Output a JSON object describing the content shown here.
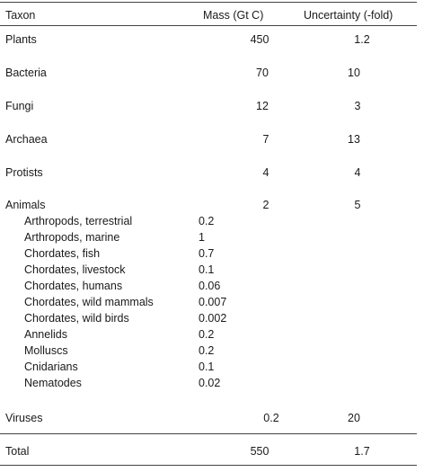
{
  "table": {
    "headers": {
      "taxon": "Taxon",
      "mass": "Mass (Gt C)",
      "uncertainty": "Uncertainty (-fold)"
    },
    "rows": [
      {
        "taxon": "Plants",
        "mass": "450",
        "uncertainty": "1.2"
      },
      {
        "taxon": "Bacteria",
        "mass": "70",
        "uncertainty": "10"
      },
      {
        "taxon": "Fungi",
        "mass": "12",
        "uncertainty": "3"
      },
      {
        "taxon": "Archaea",
        "mass": "7",
        "uncertainty": "13"
      },
      {
        "taxon": "Protists",
        "mass": "4",
        "uncertainty": "4"
      },
      {
        "taxon": "Animals",
        "mass": "2",
        "uncertainty": "5"
      }
    ],
    "animal_subrows": [
      {
        "taxon": "Arthropods, terrestrial",
        "mass": "0.2"
      },
      {
        "taxon": "Arthropods, marine",
        "mass": "1"
      },
      {
        "taxon": "Chordates, fish",
        "mass": "0.7"
      },
      {
        "taxon": "Chordates, livestock",
        "mass": "0.1"
      },
      {
        "taxon": "Chordates, humans",
        "mass": "0.06"
      },
      {
        "taxon": "Chordates, wild mammals",
        "mass": "0.007"
      },
      {
        "taxon": "Chordates, wild birds",
        "mass": "0.002"
      },
      {
        "taxon": "Annelids",
        "mass": "0.2"
      },
      {
        "taxon": "Molluscs",
        "mass": "0.2"
      },
      {
        "taxon": "Cnidarians",
        "mass": "0.1"
      },
      {
        "taxon": "Nematodes",
        "mass": "0.02"
      }
    ],
    "viruses": {
      "taxon": "Viruses",
      "mass": "0.2",
      "uncertainty": "20"
    },
    "total": {
      "taxon": "Total",
      "mass": "550",
      "uncertainty": "1.7"
    }
  }
}
